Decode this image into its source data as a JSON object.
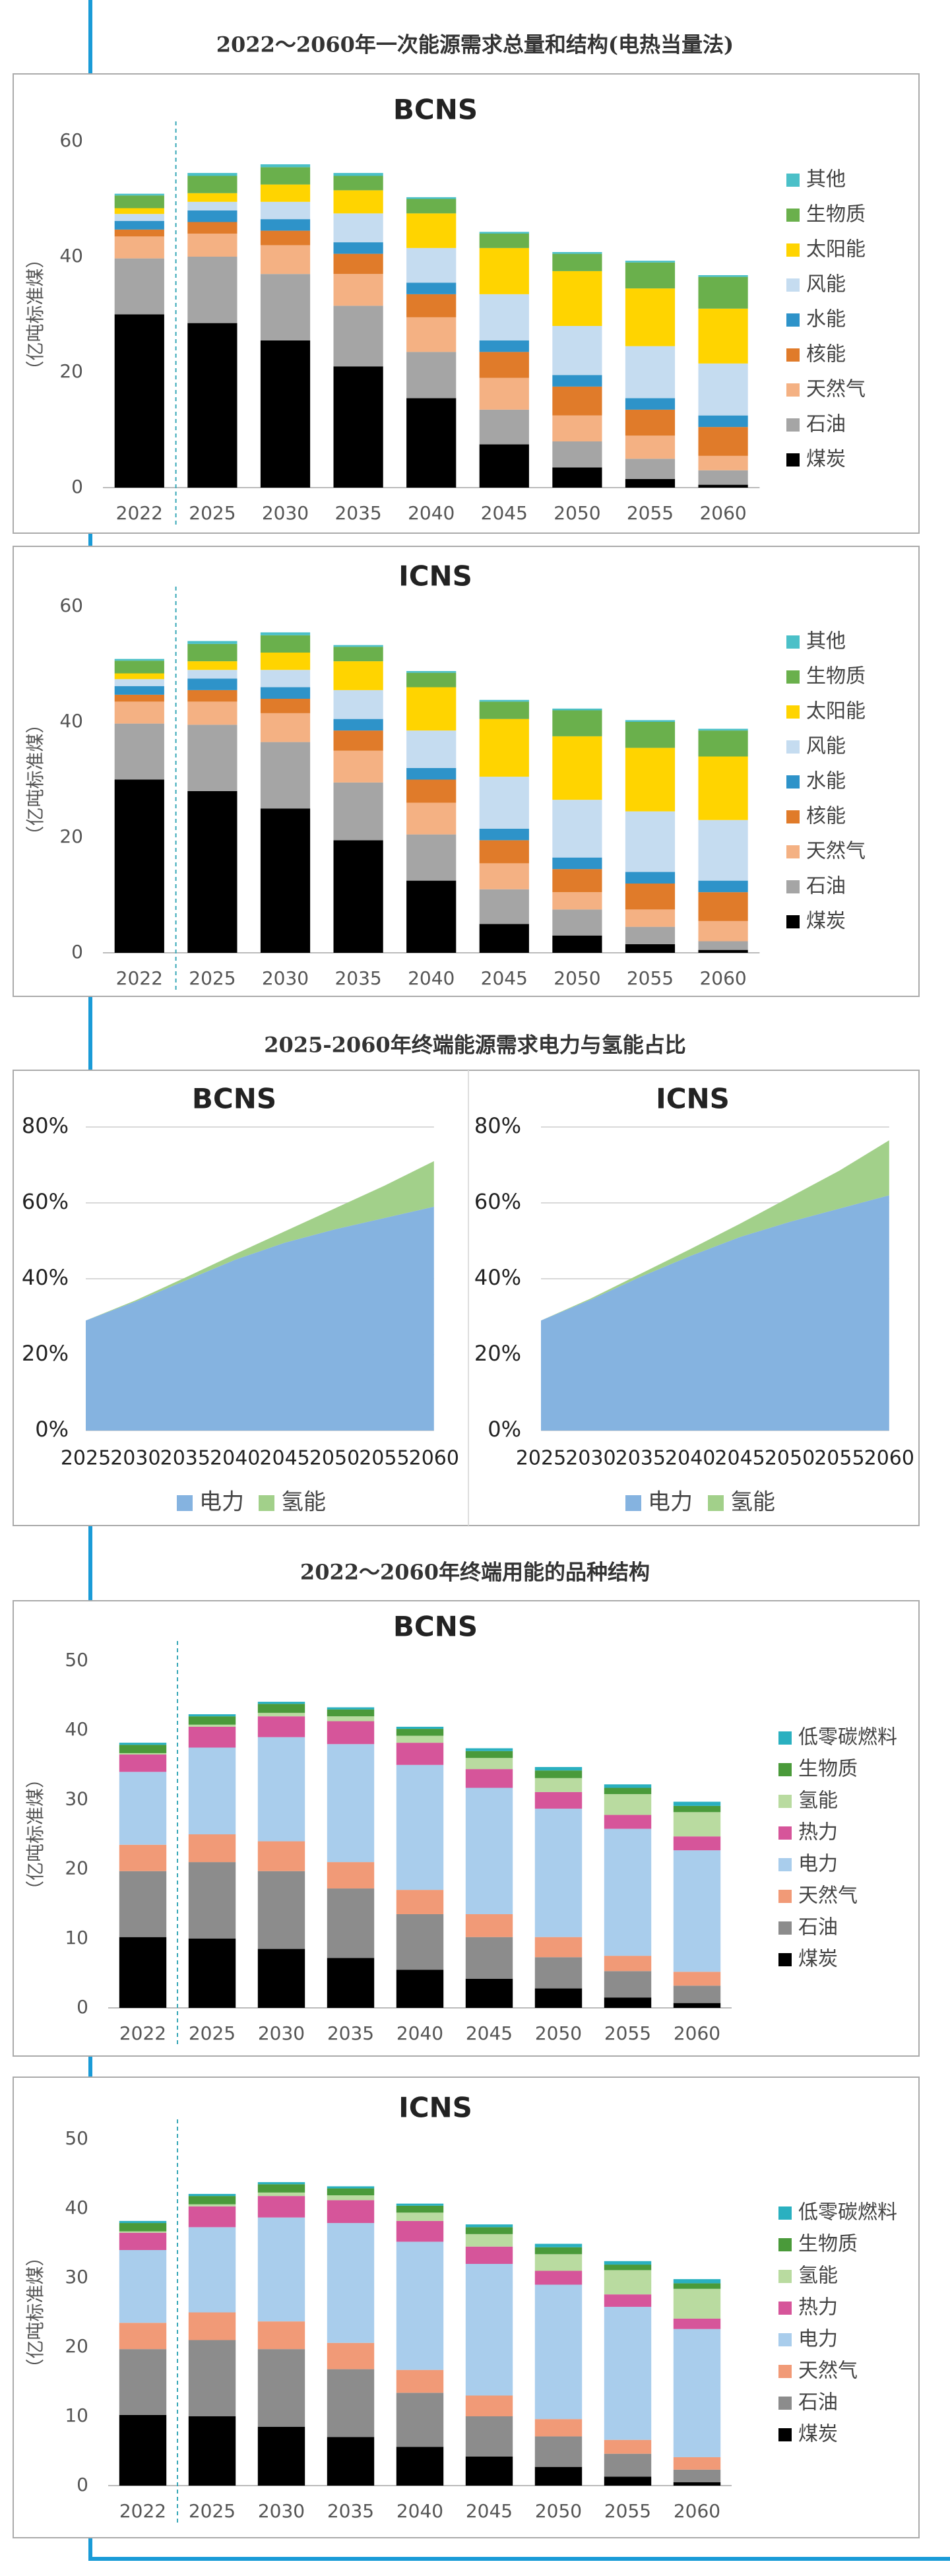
{
  "headings": [
    "2022～2060年一次能源需求总量和结构(电热当量法)",
    "2025-2060年终端能源需求电力与氢能占比",
    "2022～2060年终端用能的品种结构"
  ],
  "chart_data": [
    {
      "type": "bar",
      "stacked": true,
      "title": "BCNS",
      "y_label": "（亿吨标准煤）",
      "legend": "right",
      "categories": [
        "2022",
        "2025",
        "2030",
        "2035",
        "2040",
        "2045",
        "2050",
        "2055",
        "2060"
      ],
      "ylim": [
        0,
        60
      ],
      "yticks": [
        0,
        20,
        40,
        60
      ],
      "series": [
        {
          "name": "煤炭",
          "color": "#000000",
          "values": [
            30,
            28.5,
            25.5,
            21,
            15.5,
            7.5,
            3.5,
            1.5,
            0.5
          ]
        },
        {
          "name": "石油",
          "color": "#a5a5a5",
          "values": [
            9.7,
            11.5,
            11.5,
            10.5,
            8,
            6,
            4.5,
            3.5,
            2.5
          ]
        },
        {
          "name": "天然气",
          "color": "#f4b183",
          "values": [
            3.8,
            4,
            5,
            5.5,
            6,
            5.5,
            4.5,
            4,
            2.5
          ]
        },
        {
          "name": "核能",
          "color": "#e07b2a",
          "values": [
            1.2,
            2,
            2.5,
            3.5,
            4,
            4.5,
            5,
            4.5,
            5
          ]
        },
        {
          "name": "水能",
          "color": "#2e93c9",
          "values": [
            1.5,
            2,
            2,
            2,
            2,
            2,
            2,
            2,
            2
          ]
        },
        {
          "name": "风能",
          "color": "#c5dcf0",
          "values": [
            1.2,
            1.5,
            3,
            5,
            6,
            8,
            8.5,
            9,
            9
          ]
        },
        {
          "name": "太阳能",
          "color": "#ffd400",
          "values": [
            1,
            1.5,
            3,
            4,
            6,
            8,
            9.5,
            10,
            9.5
          ]
        },
        {
          "name": "生物质",
          "color": "#6ab04c",
          "values": [
            2.2,
            3,
            3,
            2.5,
            2.5,
            2.5,
            3,
            4.5,
            5.5
          ]
        },
        {
          "name": "其他",
          "color": "#4bc0c8",
          "values": [
            0.3,
            0.5,
            0.5,
            0.5,
            0.3,
            0.3,
            0.3,
            0.3,
            0.3
          ]
        }
      ]
    },
    {
      "type": "bar",
      "stacked": true,
      "title": "ICNS",
      "y_label": "（亿吨标准煤）",
      "legend": "right",
      "categories": [
        "2022",
        "2025",
        "2030",
        "2035",
        "2040",
        "2045",
        "2050",
        "2055",
        "2060"
      ],
      "ylim": [
        0,
        60
      ],
      "yticks": [
        0,
        20,
        40,
        60
      ],
      "series": [
        {
          "name": "煤炭",
          "color": "#000000",
          "values": [
            30,
            28,
            25,
            19.5,
            12.5,
            5,
            3,
            1.5,
            0.5
          ]
        },
        {
          "name": "石油",
          "color": "#a5a5a5",
          "values": [
            9.7,
            11.5,
            11.5,
            10,
            8,
            6,
            4.5,
            3,
            1.5
          ]
        },
        {
          "name": "天然气",
          "color": "#f4b183",
          "values": [
            3.8,
            4,
            5,
            5.5,
            5.5,
            4.5,
            3,
            3,
            3.5
          ]
        },
        {
          "name": "核能",
          "color": "#e07b2a",
          "values": [
            1.2,
            2,
            2.5,
            3.5,
            4,
            4,
            4,
            4.5,
            5
          ]
        },
        {
          "name": "水能",
          "color": "#2e93c9",
          "values": [
            1.5,
            2,
            2,
            2,
            2,
            2,
            2,
            2,
            2
          ]
        },
        {
          "name": "风能",
          "color": "#c5dcf0",
          "values": [
            1.2,
            1.5,
            3,
            5,
            6.5,
            9,
            10,
            10.5,
            10.5
          ]
        },
        {
          "name": "太阳能",
          "color": "#ffd400",
          "values": [
            1,
            1.5,
            3,
            5,
            7.5,
            10,
            11,
            11,
            11
          ]
        },
        {
          "name": "生物质",
          "color": "#6ab04c",
          "values": [
            2.2,
            3,
            3,
            2.5,
            2.5,
            3,
            4.5,
            4.5,
            4.5
          ]
        },
        {
          "name": "其他",
          "color": "#4bc0c8",
          "values": [
            0.3,
            0.5,
            0.5,
            0.3,
            0.3,
            0.3,
            0.3,
            0.3,
            0.3
          ]
        }
      ]
    },
    {
      "type": "area",
      "stacked": true,
      "title": "BCNS",
      "legend": "bottom",
      "grid": true,
      "categories": [
        "2025",
        "2030",
        "2035",
        "2040",
        "2045",
        "2050",
        "2055",
        "2060"
      ],
      "ylim": [
        0,
        80
      ],
      "yticks": [
        {
          "value": 0,
          "label": "0%"
        },
        {
          "value": 20,
          "label": "20%"
        },
        {
          "value": 40,
          "label": "40%"
        },
        {
          "value": 60,
          "label": "60%"
        },
        {
          "value": 80,
          "label": "80%"
        }
      ],
      "series": [
        {
          "name": "电力",
          "color": "#85b3e0",
          "values": [
            29,
            34,
            39.5,
            45,
            49.5,
            53,
            56,
            59
          ]
        },
        {
          "name": "氢能",
          "color": "#a2d08a",
          "values": [
            0,
            0.3,
            0.8,
            1.5,
            3,
            5.5,
            8.5,
            12
          ]
        }
      ]
    },
    {
      "type": "area",
      "stacked": true,
      "title": "ICNS",
      "legend": "bottom",
      "grid": true,
      "categories": [
        "2025",
        "2030",
        "2035",
        "2040",
        "2045",
        "2050",
        "2055",
        "2060"
      ],
      "ylim": [
        0,
        80
      ],
      "yticks": [
        {
          "value": 0,
          "label": "0%"
        },
        {
          "value": 20,
          "label": "20%"
        },
        {
          "value": 40,
          "label": "40%"
        },
        {
          "value": 60,
          "label": "60%"
        },
        {
          "value": 80,
          "label": "80%"
        }
      ],
      "series": [
        {
          "name": "电力",
          "color": "#85b3e0",
          "values": [
            29,
            34.5,
            40.5,
            46,
            51,
            55,
            58.5,
            62
          ]
        },
        {
          "name": "氢能",
          "color": "#a2d08a",
          "values": [
            0,
            0.3,
            0.8,
            1.8,
            3.5,
            6.5,
            10,
            14.5
          ]
        }
      ]
    },
    {
      "type": "bar",
      "stacked": true,
      "title": "BCNS",
      "y_label": "（亿吨标准煤）",
      "legend": "right",
      "categories": [
        "2022",
        "2025",
        "2030",
        "2035",
        "2040",
        "2045",
        "2050",
        "2055",
        "2060"
      ],
      "ylim": [
        0,
        50
      ],
      "yticks": [
        0,
        10,
        20,
        30,
        40,
        50
      ],
      "series": [
        {
          "name": "煤炭",
          "color": "#000000",
          "values": [
            10.2,
            10,
            8.5,
            7.2,
            5.5,
            4.2,
            2.8,
            1.5,
            0.7
          ]
        },
        {
          "name": "石油",
          "color": "#8c8c8c",
          "values": [
            9.5,
            11,
            11.2,
            10,
            8,
            6,
            4.5,
            3.8,
            2.5
          ]
        },
        {
          "name": "天然气",
          "color": "#f19a77",
          "values": [
            3.8,
            4,
            4.3,
            3.8,
            3.5,
            3.3,
            2.9,
            2.2,
            2
          ]
        },
        {
          "name": "电力",
          "color": "#a9cdec",
          "values": [
            10.5,
            12.5,
            15,
            17,
            18,
            18.2,
            18.5,
            18.3,
            17.5
          ]
        },
        {
          "name": "热力",
          "color": "#d6559a",
          "values": [
            2.5,
            3,
            3,
            3.3,
            3.2,
            2.7,
            2.4,
            2,
            2
          ]
        },
        {
          "name": "氢能",
          "color": "#b9dba0",
          "values": [
            0.2,
            0.3,
            0.5,
            0.7,
            1,
            1.6,
            2,
            3,
            3.5
          ]
        },
        {
          "name": "生物质",
          "color": "#4a9a3a",
          "values": [
            1.2,
            1.2,
            1.3,
            1,
            1,
            1,
            1.1,
            0.9,
            0.9
          ]
        },
        {
          "name": "低零碳燃料",
          "color": "#2ab0c0",
          "values": [
            0.3,
            0.3,
            0.3,
            0.3,
            0.3,
            0.4,
            0.5,
            0.5,
            0.6
          ]
        }
      ]
    },
    {
      "type": "bar",
      "stacked": true,
      "title": "ICNS",
      "y_label": "（亿吨标准煤）",
      "legend": "right",
      "categories": [
        "2022",
        "2025",
        "2030",
        "2035",
        "2040",
        "2045",
        "2050",
        "2055",
        "2060"
      ],
      "ylim": [
        0,
        50
      ],
      "yticks": [
        0,
        10,
        20,
        30,
        40,
        50
      ],
      "series": [
        {
          "name": "煤炭",
          "color": "#000000",
          "values": [
            10.2,
            10,
            8.5,
            7,
            5.6,
            4.2,
            2.7,
            1.3,
            0.5
          ]
        },
        {
          "name": "石油",
          "color": "#8c8c8c",
          "values": [
            9.5,
            11,
            11.2,
            9.8,
            7.8,
            5.8,
            4.4,
            3.3,
            1.8
          ]
        },
        {
          "name": "天然气",
          "color": "#f19a77",
          "values": [
            3.8,
            4,
            4,
            3.8,
            3.3,
            3,
            2.5,
            2,
            1.8
          ]
        },
        {
          "name": "电力",
          "color": "#a9cdec",
          "values": [
            10.5,
            12.3,
            15,
            17.3,
            18.5,
            19,
            19.4,
            19.2,
            18.5
          ]
        },
        {
          "name": "热力",
          "color": "#d6559a",
          "values": [
            2.5,
            3,
            3.1,
            3.3,
            3,
            2.5,
            2,
            1.8,
            1.5
          ]
        },
        {
          "name": "氢能",
          "color": "#b9dba0",
          "values": [
            0.2,
            0.3,
            0.5,
            0.7,
            1.2,
            1.8,
            2.4,
            3.5,
            4.3
          ]
        },
        {
          "name": "生物质",
          "color": "#4a9a3a",
          "values": [
            1.2,
            1.2,
            1.2,
            1,
            1,
            1,
            1,
            0.8,
            0.8
          ]
        },
        {
          "name": "低零碳燃料",
          "color": "#2ab0c0",
          "values": [
            0.3,
            0.3,
            0.3,
            0.3,
            0.3,
            0.4,
            0.5,
            0.5,
            0.6
          ]
        }
      ]
    }
  ]
}
